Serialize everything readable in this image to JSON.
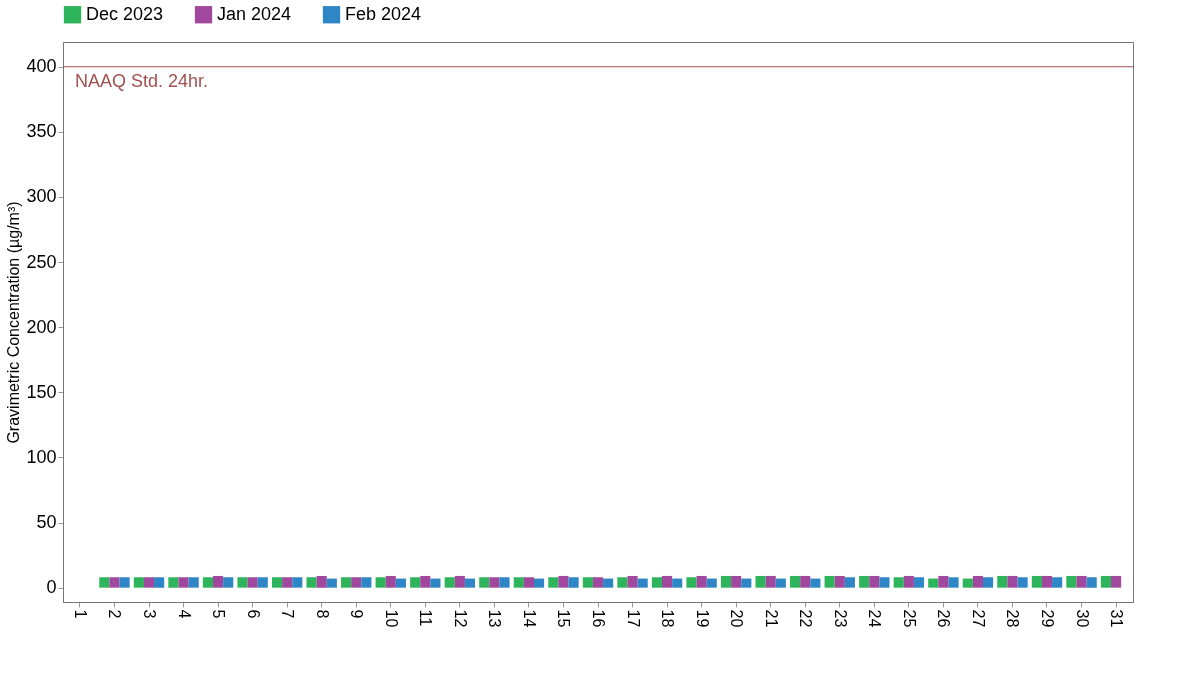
{
  "chart_data": {
    "type": "bar",
    "ylabel": "Gravimetric Concentration (µg/m³)",
    "categories": [
      "1",
      "2",
      "3",
      "4",
      "5",
      "6",
      "7",
      "8",
      "9",
      "10",
      "11",
      "12",
      "13",
      "14",
      "15",
      "16",
      "17",
      "18",
      "19",
      "20",
      "21",
      "22",
      "23",
      "24",
      "25",
      "26",
      "27",
      "28",
      "29",
      "30",
      "31"
    ],
    "series": [
      {
        "name": "Dec 2023",
        "color": "#2eb45a",
        "values": [
          null,
          8,
          8,
          8,
          8,
          8,
          8,
          8,
          8,
          8,
          8,
          8,
          8,
          8,
          8,
          8,
          8,
          8,
          8,
          9,
          9,
          9,
          9,
          9,
          8,
          7,
          7,
          9,
          9,
          9,
          9
        ]
      },
      {
        "name": "Jan 2024",
        "color": "#a0479e",
        "values": [
          null,
          8,
          8,
          8,
          9,
          8,
          8,
          9,
          8,
          9,
          9,
          9,
          8,
          8,
          9,
          8,
          9,
          9,
          9,
          9,
          9,
          9,
          9,
          9,
          9,
          9,
          9,
          9,
          9,
          9,
          9
        ]
      },
      {
        "name": "Feb 2024",
        "color": "#2f86c6",
        "values": [
          null,
          8,
          8,
          8,
          8,
          8,
          8,
          7,
          8,
          7,
          7,
          7,
          8,
          7,
          8,
          7,
          7,
          7,
          7,
          7,
          7,
          7,
          8,
          8,
          8,
          8,
          8,
          8,
          8,
          8,
          null
        ]
      }
    ],
    "ylim": [
      -11,
      419
    ],
    "yticks": [
      0,
      50,
      100,
      150,
      200,
      250,
      300,
      350,
      400
    ],
    "ref_lines": [
      {
        "axis": "y",
        "value": 400,
        "label": "NAAQ Std. 24hr.",
        "color": "#a0504f"
      }
    ],
    "legend": "top left",
    "grid": false
  }
}
